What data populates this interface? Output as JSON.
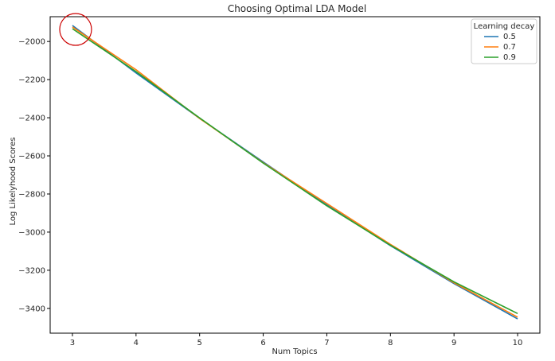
{
  "chart_data": {
    "type": "line",
    "title": "Choosing Optimal LDA Model",
    "xlabel": "Num Topics",
    "ylabel": "Log Likelyhood Scores",
    "x": [
      3,
      4,
      5,
      6,
      7,
      8,
      9,
      10
    ],
    "xticks": [
      3,
      4,
      5,
      6,
      7,
      8,
      9,
      10
    ],
    "yticks": [
      -2000,
      -2200,
      -2400,
      -2600,
      -2800,
      -3000,
      -3200,
      -3400
    ],
    "xlim": [
      2.65,
      10.35
    ],
    "ylim": [
      -3530,
      -1870
    ],
    "grid": false,
    "legend": {
      "title": "Learning decay",
      "placement": "top-right"
    },
    "series": [
      {
        "name": "0.5",
        "color": "#1f77b4",
        "values": [
          -1916,
          -2165,
          -2403,
          -2632,
          -2857,
          -3071,
          -3270,
          -3455
        ]
      },
      {
        "name": "0.7",
        "color": "#ff7f0e",
        "values": [
          -1924,
          -2148,
          -2404,
          -2636,
          -2850,
          -3064,
          -3266,
          -3446
        ]
      },
      {
        "name": "0.9",
        "color": "#2ca02c",
        "values": [
          -1933,
          -2158,
          -2401,
          -2638,
          -2862,
          -3069,
          -3261,
          -3427
        ]
      }
    ],
    "annotations": [
      {
        "type": "circle",
        "x": 3,
        "y": -1916,
        "color": "#cc0000"
      }
    ]
  }
}
